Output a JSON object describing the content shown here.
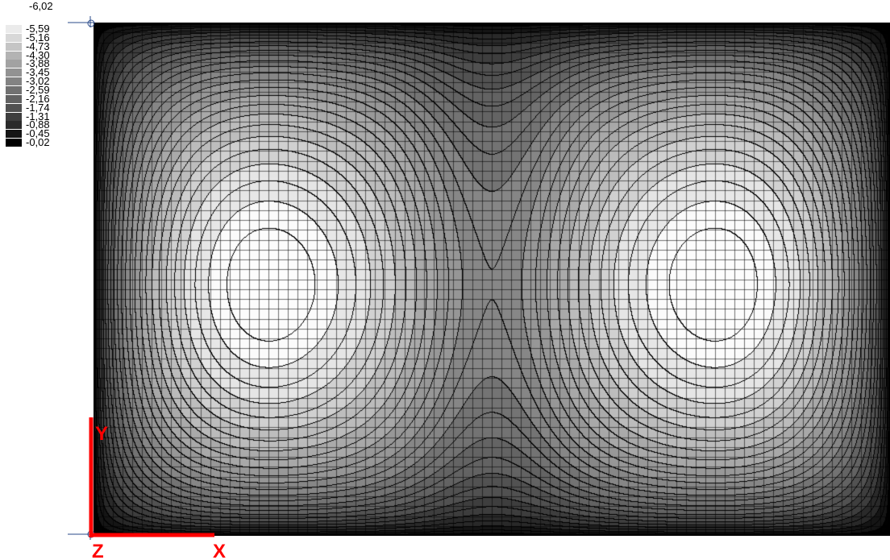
{
  "legend": {
    "max_label": "-6,02",
    "entries": [
      {
        "label": "-5,59",
        "color": "#ebebeb"
      },
      {
        "label": "-5,16",
        "color": "#d8d8d8"
      },
      {
        "label": "-4,73",
        "color": "#c5c5c5"
      },
      {
        "label": "-4,30",
        "color": "#b3b3b3"
      },
      {
        "label": "-3,88",
        "color": "#a2a2a2"
      },
      {
        "label": "-3,45",
        "color": "#929292"
      },
      {
        "label": "-3,02",
        "color": "#838383"
      },
      {
        "label": "-2,59",
        "color": "#717171"
      },
      {
        "label": "-2,16",
        "color": "#626262"
      },
      {
        "label": "-1,74",
        "color": "#515151"
      },
      {
        "label": "-1,31",
        "color": "#3e3e3e"
      },
      {
        "label": "-0,88",
        "color": "#2a2a2a"
      },
      {
        "label": "-0,45",
        "color": "#151515"
      },
      {
        "label": "-0,02",
        "color": "#000000"
      }
    ]
  },
  "axes": {
    "x_label": "X",
    "y_label": "Y",
    "z_label": "Z",
    "color": "#ff0000"
  },
  "plot": {
    "background": "#000000",
    "mesh_color": "#000000",
    "contour_color": "#000000"
  }
}
